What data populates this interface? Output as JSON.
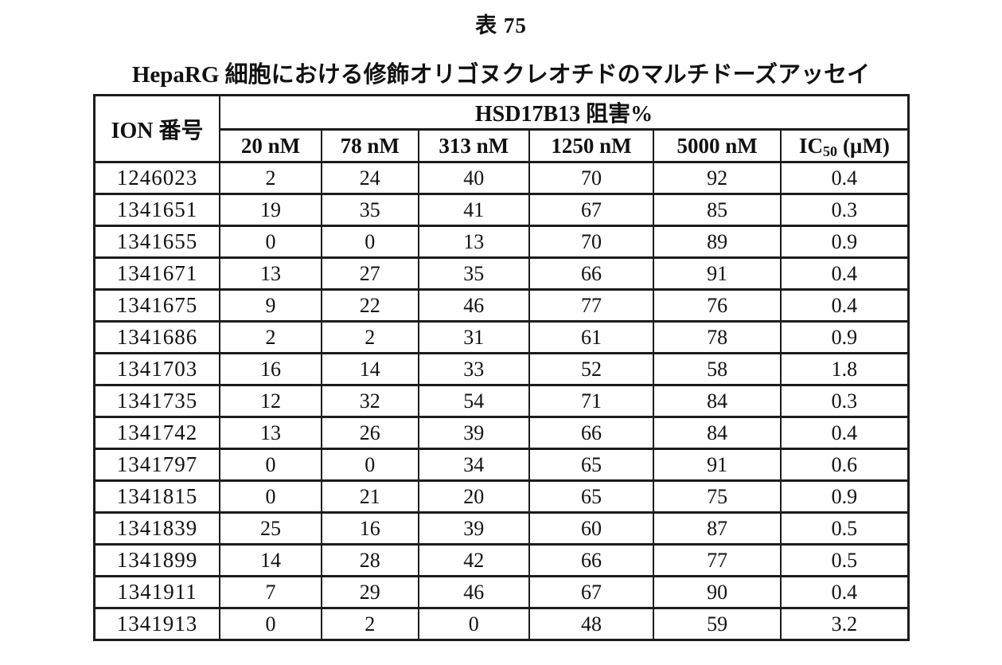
{
  "page": {
    "title": "表 75",
    "subtitle": "HepaRG 細胞における修飾オリゴヌクレオチドのマルチドーズアッセイ"
  },
  "colors": {
    "background": "#ffffff",
    "text": "#111111",
    "border": "#1c1c1c"
  },
  "table": {
    "corner_header": "ION 番号",
    "group_header": "HSD17B13 阻害%",
    "dose_headers": [
      "20 nM",
      "78 nM",
      "313 nM",
      "1250 nM",
      "5000 nM"
    ],
    "ic50_header": {
      "prefix": "IC",
      "sub": "50",
      "suffix": "(μM)"
    },
    "rows": [
      {
        "ion": "1246023",
        "c20": "2",
        "c78": "24",
        "c313": "40",
        "c1250": "70",
        "c5000": "92",
        "ic50": "0.4"
      },
      {
        "ion": "1341651",
        "c20": "19",
        "c78": "35",
        "c313": "41",
        "c1250": "67",
        "c5000": "85",
        "ic50": "0.3"
      },
      {
        "ion": "1341655",
        "c20": "0",
        "c78": "0",
        "c313": "13",
        "c1250": "70",
        "c5000": "89",
        "ic50": "0.9"
      },
      {
        "ion": "1341671",
        "c20": "13",
        "c78": "27",
        "c313": "35",
        "c1250": "66",
        "c5000": "91",
        "ic50": "0.4"
      },
      {
        "ion": "1341675",
        "c20": "9",
        "c78": "22",
        "c313": "46",
        "c1250": "77",
        "c5000": "76",
        "ic50": "0.4"
      },
      {
        "ion": "1341686",
        "c20": "2",
        "c78": "2",
        "c313": "31",
        "c1250": "61",
        "c5000": "78",
        "ic50": "0.9"
      },
      {
        "ion": "1341703",
        "c20": "16",
        "c78": "14",
        "c313": "33",
        "c1250": "52",
        "c5000": "58",
        "ic50": "1.8"
      },
      {
        "ion": "1341735",
        "c20": "12",
        "c78": "32",
        "c313": "54",
        "c1250": "71",
        "c5000": "84",
        "ic50": "0.3"
      },
      {
        "ion": "1341742",
        "c20": "13",
        "c78": "26",
        "c313": "39",
        "c1250": "66",
        "c5000": "84",
        "ic50": "0.4"
      },
      {
        "ion": "1341797",
        "c20": "0",
        "c78": "0",
        "c313": "34",
        "c1250": "65",
        "c5000": "91",
        "ic50": "0.6"
      },
      {
        "ion": "1341815",
        "c20": "0",
        "c78": "21",
        "c313": "20",
        "c1250": "65",
        "c5000": "75",
        "ic50": "0.9"
      },
      {
        "ion": "1341839",
        "c20": "25",
        "c78": "16",
        "c313": "39",
        "c1250": "60",
        "c5000": "87",
        "ic50": "0.5"
      },
      {
        "ion": "1341899",
        "c20": "14",
        "c78": "28",
        "c313": "42",
        "c1250": "66",
        "c5000": "77",
        "ic50": "0.5"
      },
      {
        "ion": "1341911",
        "c20": "7",
        "c78": "29",
        "c313": "46",
        "c1250": "67",
        "c5000": "90",
        "ic50": "0.4"
      },
      {
        "ion": "1341913",
        "c20": "0",
        "c78": "2",
        "c313": "0",
        "c1250": "48",
        "c5000": "59",
        "ic50": "3.2"
      }
    ]
  }
}
